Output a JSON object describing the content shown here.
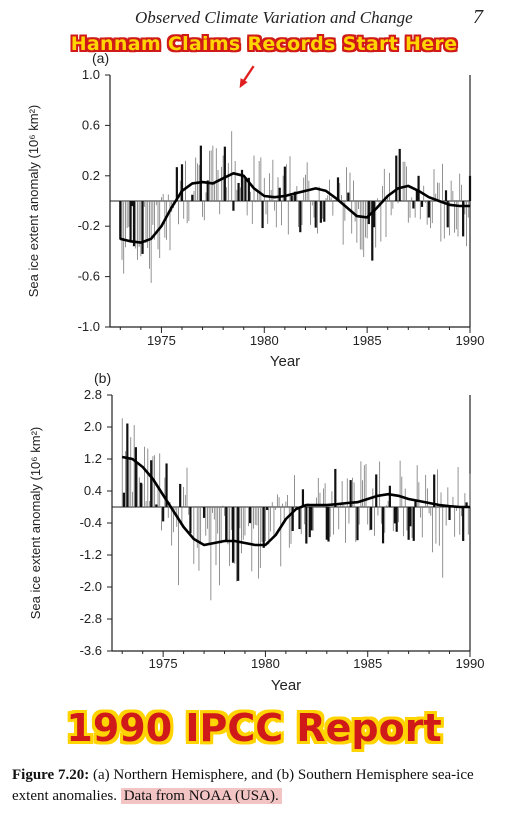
{
  "header": {
    "title": "Observed Climate Variation and Change",
    "page": "7"
  },
  "banner_top": "Hannam Claims Records Start Here",
  "banner_bottom": "1990 IPCC Report",
  "caption": {
    "figure": "Figure 7.20:",
    "text": " (a)  Northern Hemisphere, and  (b) Southern Hemisphere sea-ice extent anomalies. ",
    "highlight": "Data from NOAA (USA)."
  },
  "colors": {
    "banner_text": "#ffd400",
    "banner_outline": "#d01a1a",
    "arrow": "#e02020",
    "highlight": "#f2c4c4"
  },
  "chart_data": [
    {
      "type": "bar",
      "panel": "(a)",
      "xlabel": "Year",
      "ylabel": "Sea ice extent anomaly (10⁶ km²)",
      "xlim": [
        1972.5,
        1990
      ],
      "ylim": [
        -1.0,
        1.0
      ],
      "xticks": [
        1975,
        1980,
        1985,
        1990
      ],
      "yticks": [
        1.0,
        0.6,
        0.2,
        -0.2,
        -0.6,
        -1.0
      ],
      "ytick_labels": [
        "1.0",
        "0.6",
        "0.2",
        "-0.2",
        "-0.6",
        "-1.0"
      ],
      "smooth": {
        "x": [
          1973,
          1973.5,
          1974,
          1974.5,
          1975,
          1975.5,
          1976,
          1976.5,
          1977,
          1977.5,
          1978,
          1978.5,
          1979,
          1979.5,
          1980,
          1980.5,
          1981,
          1981.5,
          1982,
          1982.5,
          1983,
          1983.5,
          1984,
          1984.5,
          1985,
          1985.5,
          1986,
          1986.5,
          1987,
          1987.5,
          1988,
          1988.5,
          1989,
          1989.5,
          1990
        ],
        "y": [
          -0.3,
          -0.32,
          -0.33,
          -0.3,
          -0.2,
          -0.05,
          0.08,
          0.14,
          0.15,
          0.14,
          0.18,
          0.22,
          0.2,
          0.1,
          0.04,
          0.03,
          0.04,
          0.06,
          0.08,
          0.1,
          0.08,
          0.02,
          -0.05,
          -0.12,
          -0.13,
          -0.05,
          0.04,
          0.1,
          0.12,
          0.08,
          0.03,
          0.0,
          -0.03,
          -0.04,
          -0.04
        ]
      },
      "peak_annotation": {
        "x": 1978.8,
        "y": 0.88
      }
    },
    {
      "type": "bar",
      "panel": "(b)",
      "xlabel": "Year",
      "ylabel": "Sea ice extent anomaly (10⁶ km²)",
      "xlim": [
        1972.5,
        1990
      ],
      "ylim": [
        -3.6,
        2.8
      ],
      "xticks": [
        1975,
        1980,
        1985,
        1990
      ],
      "yticks": [
        2.8,
        2.0,
        1.2,
        0.4,
        -0.4,
        -1.2,
        -2.0,
        -2.8,
        -3.6
      ],
      "ytick_labels": [
        "2.8",
        "2.0",
        "1.2",
        "0.4",
        "-0.4",
        "-1.2",
        "-2.0",
        "-2.8",
        "-3.6"
      ],
      "smooth": {
        "x": [
          1973,
          1973.5,
          1974,
          1974.5,
          1975,
          1975.5,
          1976,
          1976.5,
          1977,
          1977.5,
          1978,
          1978.5,
          1979,
          1979.5,
          1980,
          1980.5,
          1981,
          1981.5,
          1982,
          1982.5,
          1983,
          1983.5,
          1984,
          1984.5,
          1985,
          1985.5,
          1986,
          1986.5,
          1987,
          1987.5,
          1988,
          1988.5,
          1989,
          1989.5,
          1990
        ],
        "y": [
          1.25,
          1.2,
          1.0,
          0.7,
          0.3,
          -0.1,
          -0.5,
          -0.8,
          -0.95,
          -0.9,
          -0.85,
          -0.85,
          -0.9,
          -0.95,
          -0.95,
          -0.7,
          -0.3,
          -0.05,
          0.05,
          0.05,
          0.05,
          0.07,
          0.1,
          0.12,
          0.2,
          0.28,
          0.32,
          0.28,
          0.2,
          0.15,
          0.1,
          0.05,
          0.02,
          0.0,
          0.0
        ]
      }
    }
  ]
}
